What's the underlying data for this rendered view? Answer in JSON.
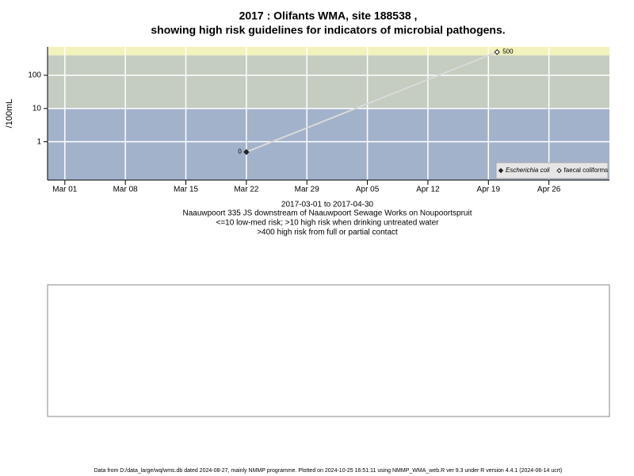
{
  "chart_data": {
    "type": "scatter",
    "title": [
      "2017 : Olifants WMA, site 188538 ,",
      "showing high risk guidelines for indicators of microbial pathogens."
    ],
    "y_label": "/100mL",
    "notes": [
      "2017-03-01 to 2017-04-30",
      "Naauwpoort 335 JS downstream of Naauwpoort Sewage Works on Noupoortspruit",
      "<=10 low-med risk; >10 high risk when drinking untreated water",
      ">400 high risk from full or partial contact"
    ],
    "footer": "Data from D:/data_large/wq/wms.db dated 2024-08-27, mainly NMMP programme. Plotted on 2024-10-25 16:51:11 using NMMP_WMA_web.R ver 9.3 under R version 4.4.1 (2024-06-14 ucrt)",
    "log_y": true,
    "grid": true,
    "legend_position": "bottom-right",
    "thresholds": [
      10,
      400
    ],
    "band_colors": [
      "#a3b2cb",
      "#c4cdc0",
      "#f2f2bc"
    ],
    "line_color": "#d9d9d9",
    "xlim": [
      "2017-02-27",
      "2017-05-03"
    ],
    "xticks": [
      {
        "value": "2017-03-01",
        "label": "Mar 01"
      },
      {
        "value": "2017-03-08",
        "label": "Mar 08"
      },
      {
        "value": "2017-03-15",
        "label": "Mar 15"
      },
      {
        "value": "2017-03-22",
        "label": "Mar 22"
      },
      {
        "value": "2017-03-29",
        "label": "Mar 29"
      },
      {
        "value": "2017-04-05",
        "label": "Apr 05"
      },
      {
        "value": "2017-04-12",
        "label": "Apr 12"
      },
      {
        "value": "2017-04-19",
        "label": "Apr 19"
      },
      {
        "value": "2017-04-26",
        "label": "Apr 26"
      }
    ],
    "ylim": [
      0.07,
      720
    ],
    "yticks": [
      1,
      10,
      100
    ],
    "series": [
      {
        "name": "Escherichia coli",
        "color": "#222222",
        "filled": true,
        "x": [
          "2017-03-22"
        ],
        "values": [
          0.49
        ],
        "value_labels": [
          "0"
        ]
      },
      {
        "name": "faecal coliforms",
        "color": "#222222",
        "filled": false,
        "x": [
          "2017-04-20"
        ],
        "values": [
          500
        ],
        "value_labels": [
          "500"
        ]
      }
    ]
  }
}
